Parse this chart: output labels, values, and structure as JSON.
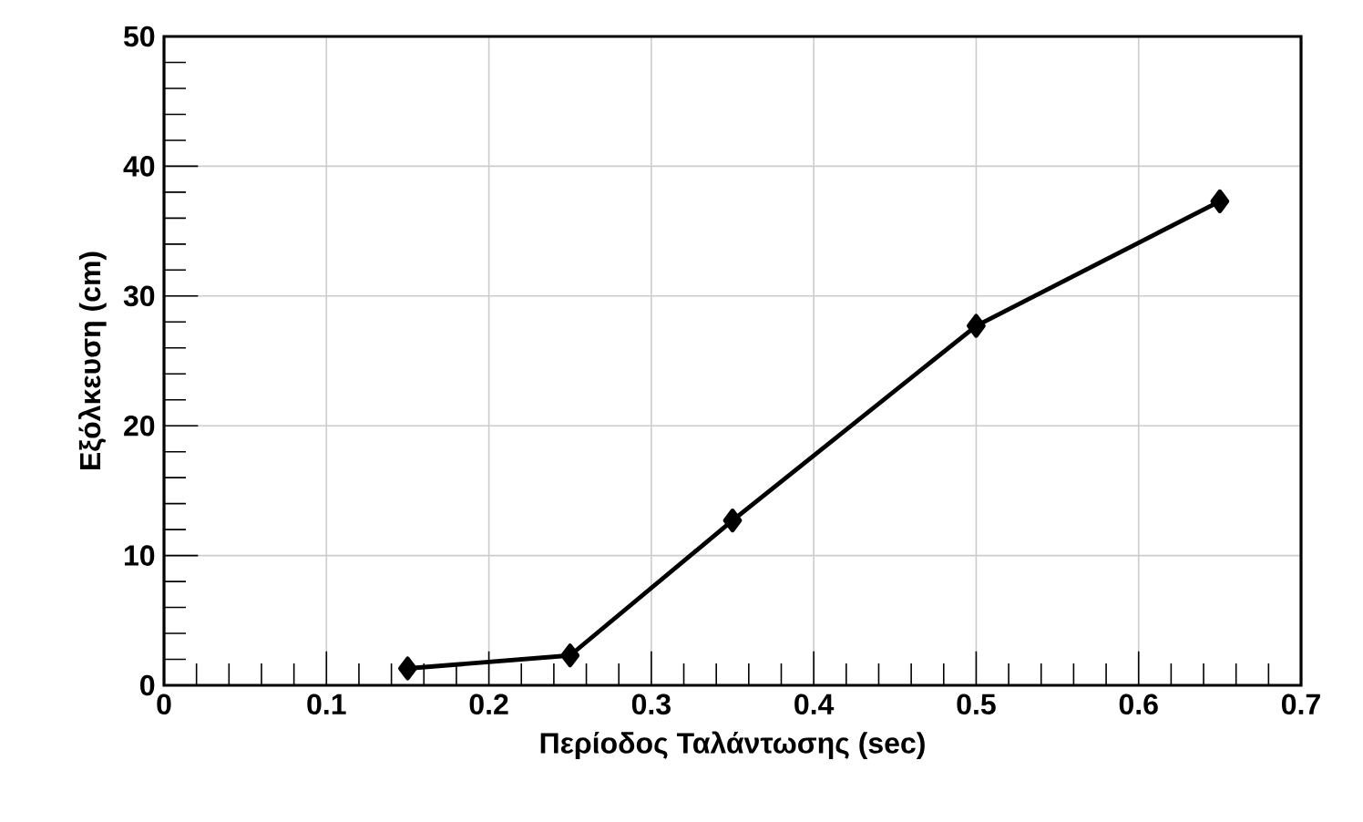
{
  "chart_data": {
    "type": "line",
    "xlabel": "Περίοδος Ταλάντωσης (sec)",
    "ylabel": "Εξόλκευση (cm)",
    "x": [
      0.15,
      0.25,
      0.35,
      0.5,
      0.65
    ],
    "series": [
      {
        "color": "#000000",
        "values": [
          1.3,
          2.3,
          12.7,
          27.7,
          37.3
        ]
      }
    ],
    "xlim": [
      0,
      0.7
    ],
    "xticks": [
      0,
      0.1,
      0.2,
      0.3,
      0.4,
      0.5,
      0.6,
      0.7
    ],
    "ylim": [
      0,
      50
    ],
    "yticks": [
      0,
      10,
      20,
      30,
      40,
      50
    ],
    "grid": true,
    "marker": "diamond",
    "line_style": "solid"
  }
}
